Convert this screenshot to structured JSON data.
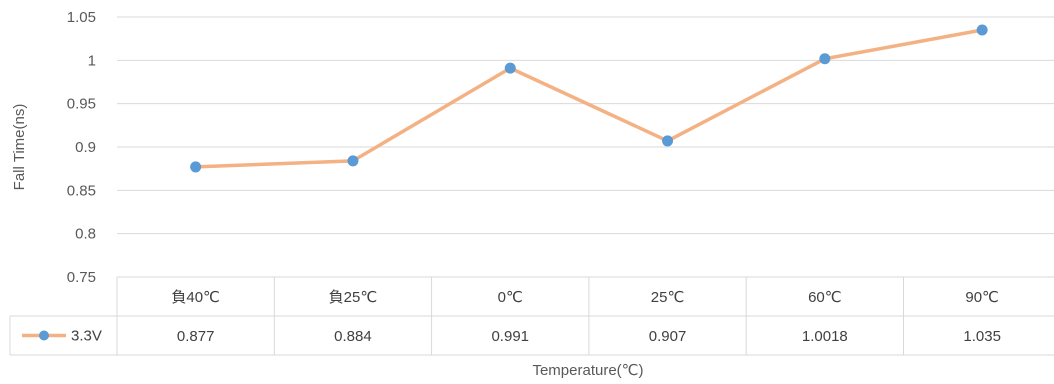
{
  "chart_data": {
    "type": "line",
    "title": "",
    "xlabel": "Temperature(℃)",
    "ylabel": "Fall Time(ns)",
    "categories": [
      "負40℃",
      "負25℃",
      "0℃",
      "25℃",
      "60℃",
      "90℃"
    ],
    "series": [
      {
        "name": "3.3V",
        "values": [
          0.877,
          0.884,
          0.991,
          0.907,
          1.0018,
          1.035
        ],
        "value_labels": [
          "0.877",
          "0.884",
          "0.991",
          "0.907",
          "1.0018",
          "1.035"
        ],
        "line_color": "#F4B183",
        "marker_color": "#5B9BD5"
      }
    ],
    "y_ticks": [
      "0.75",
      "0.8",
      "0.85",
      "0.9",
      "0.95",
      "1",
      "1.05"
    ],
    "ylim": [
      0.75,
      1.05
    ],
    "grid": true,
    "legend": "data-table"
  }
}
